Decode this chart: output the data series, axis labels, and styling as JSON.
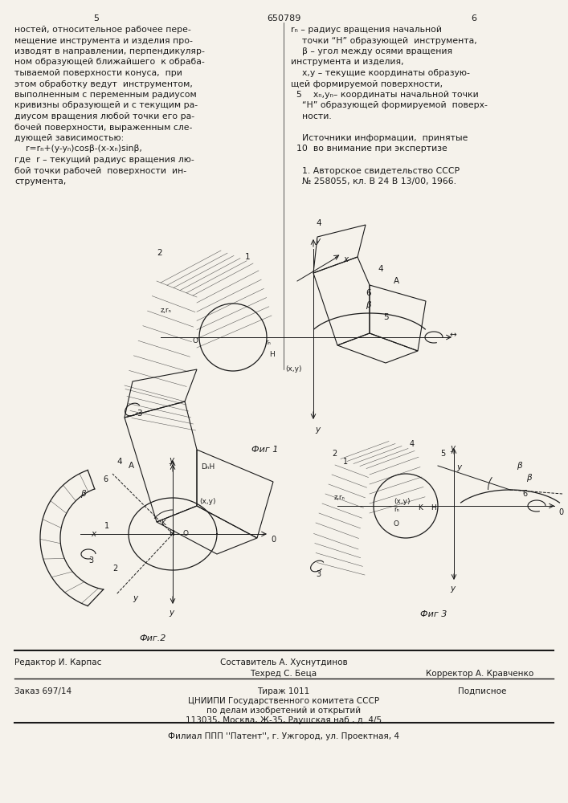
{
  "bg_color": "#f5f2eb",
  "page_number_left": "5",
  "page_number_center": "650789",
  "page_number_right": "6",
  "left_col_text": [
    "ностей, относительное рабочее пере-",
    "мещение инструмента и изделия про-",
    "изводят в направлении, перпендикуляр-",
    "ном образующей ближайшего  к обраба-",
    "тываемой поверхности конуса,  при",
    "этом обработку ведут  инструментом,",
    "выполненным с переменным радиусом",
    "кривизны образующей и с текущим ра-",
    "диусом вращения любой точки его ра-",
    "бочей поверхности, выраженным сле-",
    "дующей зависимостью:",
    "    r=rₙ+(y-yₙ)cosβ-(x-xₙ)sinβ,",
    "где  r – текущий радиус вращения лю-",
    "бой точки рабочей  поверхности  ин-",
    "струмента,"
  ],
  "right_col_text": [
    "rₙ – радиус вращения начальной",
    "    точки “Н” образующей  инструмента,",
    "    β – угол между осями вращения",
    "инструмента и изделия,",
    "    х,у – текущие координаты образую-",
    "щей формируемой поверхности,",
    "  5    хₙ,уₙ– координаты начальной точки",
    "    “Н” образующей формируемой  поверх-",
    "    ности.",
    "",
    "    Источники информации,  принятые",
    "  10  во внимание при экспертизе",
    "",
    "    1. Авторское свидетельство СССР",
    "    № 258055, кл. В 24 В 13/00, 1966."
  ],
  "fig1_caption": "Фиг 1",
  "fig2_caption": "Фиг.2",
  "fig3_caption": "Фиг 3",
  "footer_line1_left": "Редактор И. Карпас",
  "footer_line1_center": "Составитель А. Хуснутдинов",
  "footer_line1_right": "",
  "footer_line2_left": "",
  "footer_line2_center": "Техред С. Беца",
  "footer_line2_right": "Корректор А. Кравченко",
  "footer_line3_left": "Заказ 697/14",
  "footer_line3_center": "Тираж 1011",
  "footer_line3_right": "Подписное",
  "footer_line4": "ЦНИИПИ Государственного комитета СССР",
  "footer_line5": "по делам изобретений и открытий",
  "footer_line6": "113035, Москва, Ж-35, Раушская наб., д. 4/5",
  "footer_line7": "Филиал ППП ''Патент'', г. Ужгород, ул. Проектная, 4",
  "text_color": "#1a1a1a",
  "line_color": "#1a1a1a"
}
